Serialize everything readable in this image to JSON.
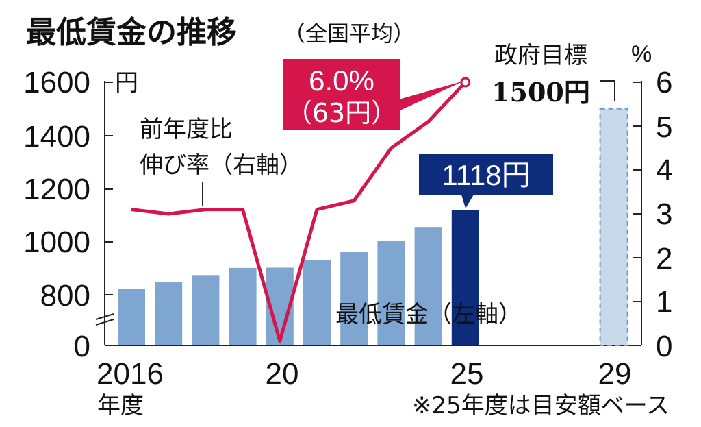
{
  "chart_data": {
    "type": "bar",
    "title": "最低賃金の推移",
    "subtitle": "（全国平均）",
    "x_ticks": [
      "2016",
      "20",
      "25",
      "29"
    ],
    "x_unit": "年度",
    "note": "※25年度は目安額ベース",
    "left_axis": {
      "unit": "円",
      "ticks": [
        "1600",
        "1400",
        "1200",
        "1000",
        "800",
        "0"
      ]
    },
    "right_axis": {
      "unit": "%",
      "ticks": [
        "6",
        "5",
        "4",
        "3",
        "2",
        "1",
        "0"
      ],
      "ylim": [
        0,
        6
      ]
    },
    "wage_series": {
      "name": "最低賃金（左軸）",
      "years": [
        2016,
        2017,
        2018,
        2019,
        2020,
        2021,
        2022,
        2023,
        2024,
        2025
      ],
      "values": [
        823,
        848,
        874,
        901,
        902,
        930,
        961,
        1004,
        1055,
        1118
      ],
      "color": "#7ea6d0",
      "highlight_color": "#0d2d7c"
    },
    "target": {
      "year": 2029,
      "value": 1500,
      "label": "政府目標",
      "value_label": "1500円",
      "color": "#c9d9ea"
    },
    "growth_series": {
      "name": "前年度比伸び率（右軸）",
      "years": [
        2016,
        2017,
        2018,
        2019,
        2020,
        2021,
        2022,
        2023,
        2024,
        2025
      ],
      "values": [
        3.1,
        3.0,
        3.1,
        3.1,
        0.1,
        3.1,
        3.3,
        4.5,
        5.1,
        6.0
      ],
      "color": "#d4164c"
    },
    "callouts": {
      "growth_pct": "6.0%",
      "growth_yen": "（63円）",
      "wage_2025": "1118円"
    }
  }
}
